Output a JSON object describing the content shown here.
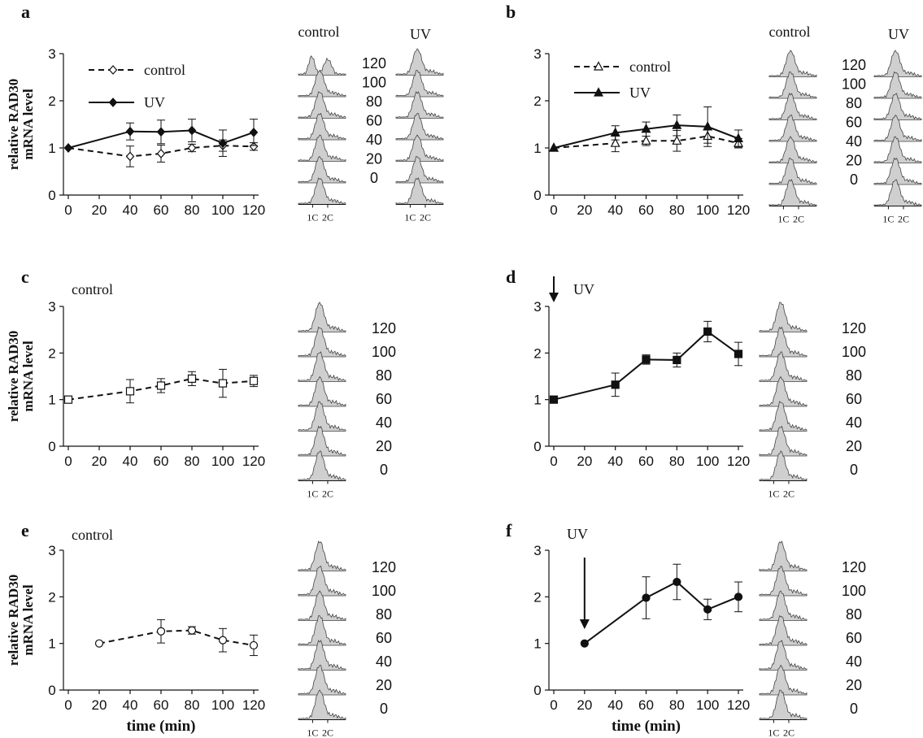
{
  "figure": {
    "y_axis_label_main": "relative RAD30",
    "y_axis_label_sub": "mRNA level",
    "x_axis_label": "time (min)",
    "flow_header_control": "control",
    "flow_header_uv": "UV",
    "flow_x_ticks": [
      "1C",
      "2C"
    ],
    "flow_times": [
      "120",
      "100",
      "80",
      "60",
      "40",
      "20",
      "0"
    ],
    "colors": {
      "ink": "#111111",
      "flow_fill": "#cfcfcf",
      "flow_outline": "#444444"
    }
  },
  "chart_data": [
    {
      "panel": "a",
      "type": "line",
      "xlim": [
        0,
        120
      ],
      "ylim": [
        0,
        3
      ],
      "x_ticks": [
        0,
        20,
        40,
        60,
        80,
        100,
        120
      ],
      "y_ticks": [
        0,
        1,
        2,
        3
      ],
      "legend": "top-left",
      "series": [
        {
          "name": "control",
          "style": "dashed",
          "marker": "diamond-open",
          "x": [
            0,
            40,
            60,
            80,
            100,
            120
          ],
          "y": [
            1.0,
            0.82,
            0.88,
            1.0,
            1.05,
            1.03
          ],
          "err": [
            0,
            0.22,
            0.18,
            0.08,
            0.12,
            0.08
          ]
        },
        {
          "name": "UV",
          "style": "solid",
          "marker": "diamond-filled",
          "x": [
            0,
            40,
            60,
            80,
            100,
            120
          ],
          "y": [
            1.0,
            1.35,
            1.34,
            1.37,
            1.1,
            1.33
          ],
          "err": [
            0,
            0.18,
            0.25,
            0.24,
            0.28,
            0.28
          ]
        }
      ],
      "flow_columns": [
        "control",
        "UV"
      ]
    },
    {
      "panel": "b",
      "type": "line",
      "xlim": [
        0,
        120
      ],
      "ylim": [
        0,
        3
      ],
      "x_ticks": [
        0,
        20,
        40,
        60,
        80,
        100,
        120
      ],
      "y_ticks": [
        0,
        1,
        2,
        3
      ],
      "legend": "top-left",
      "series": [
        {
          "name": "control",
          "style": "dashed",
          "marker": "triangle-open",
          "x": [
            0,
            40,
            60,
            80,
            100,
            120
          ],
          "y": [
            1.0,
            1.1,
            1.15,
            1.15,
            1.25,
            1.1
          ],
          "err": [
            0,
            0.18,
            0.1,
            0.22,
            0.15,
            0.1
          ]
        },
        {
          "name": "UV",
          "style": "solid",
          "marker": "triangle-filled",
          "x": [
            0,
            40,
            60,
            80,
            100,
            120
          ],
          "y": [
            1.0,
            1.32,
            1.4,
            1.48,
            1.45,
            1.2
          ],
          "err": [
            0,
            0.15,
            0.15,
            0.22,
            0.42,
            0.18
          ]
        }
      ],
      "flow_columns": [
        "control",
        "UV"
      ]
    },
    {
      "panel": "c",
      "type": "line",
      "xlim": [
        0,
        120
      ],
      "ylim": [
        0,
        3
      ],
      "x_ticks": [
        0,
        20,
        40,
        60,
        80,
        100,
        120
      ],
      "y_ticks": [
        0,
        1,
        2,
        3
      ],
      "annotation": "control",
      "series": [
        {
          "style": "dashed",
          "marker": "square-open",
          "x": [
            0,
            40,
            60,
            80,
            100,
            120
          ],
          "y": [
            1.0,
            1.18,
            1.3,
            1.45,
            1.35,
            1.4
          ],
          "err": [
            0,
            0.25,
            0.15,
            0.15,
            0.3,
            0.12
          ]
        }
      ]
    },
    {
      "panel": "d",
      "type": "line",
      "xlim": [
        0,
        120
      ],
      "ylim": [
        0,
        3
      ],
      "x_ticks": [
        0,
        20,
        40,
        60,
        80,
        100,
        120
      ],
      "y_ticks": [
        0,
        1,
        2,
        3
      ],
      "annotation": "UV",
      "arrow_x": 0,
      "series": [
        {
          "style": "solid",
          "marker": "square-filled",
          "x": [
            0,
            40,
            60,
            80,
            100,
            120
          ],
          "y": [
            1.0,
            1.32,
            1.86,
            1.85,
            2.46,
            1.98
          ],
          "err": [
            0,
            0.25,
            0.1,
            0.15,
            0.22,
            0.25
          ]
        }
      ]
    },
    {
      "panel": "e",
      "type": "line",
      "xlim": [
        0,
        120
      ],
      "ylim": [
        0,
        3
      ],
      "x_ticks": [
        0,
        20,
        40,
        60,
        80,
        100,
        120
      ],
      "y_ticks": [
        0,
        1,
        2,
        3
      ],
      "xlabel": "time (min)",
      "annotation": "control",
      "series": [
        {
          "style": "dashed",
          "marker": "circle-open",
          "x": [
            20,
            60,
            80,
            100,
            120
          ],
          "y": [
            1.0,
            1.26,
            1.28,
            1.07,
            0.96
          ],
          "err": [
            0,
            0.25,
            0.08,
            0.25,
            0.22
          ]
        }
      ]
    },
    {
      "panel": "f",
      "type": "line",
      "xlim": [
        0,
        120
      ],
      "ylim": [
        0,
        3
      ],
      "x_ticks": [
        0,
        20,
        40,
        60,
        80,
        100,
        120
      ],
      "y_ticks": [
        0,
        1,
        2,
        3
      ],
      "xlabel": "time (min)",
      "annotation": "UV",
      "arrow_x": 20,
      "series": [
        {
          "style": "solid",
          "marker": "circle-filled",
          "x": [
            20,
            60,
            80,
            100,
            120
          ],
          "y": [
            1.0,
            1.98,
            2.32,
            1.73,
            2.0
          ],
          "err": [
            0,
            0.45,
            0.38,
            0.22,
            0.32
          ]
        }
      ]
    }
  ]
}
